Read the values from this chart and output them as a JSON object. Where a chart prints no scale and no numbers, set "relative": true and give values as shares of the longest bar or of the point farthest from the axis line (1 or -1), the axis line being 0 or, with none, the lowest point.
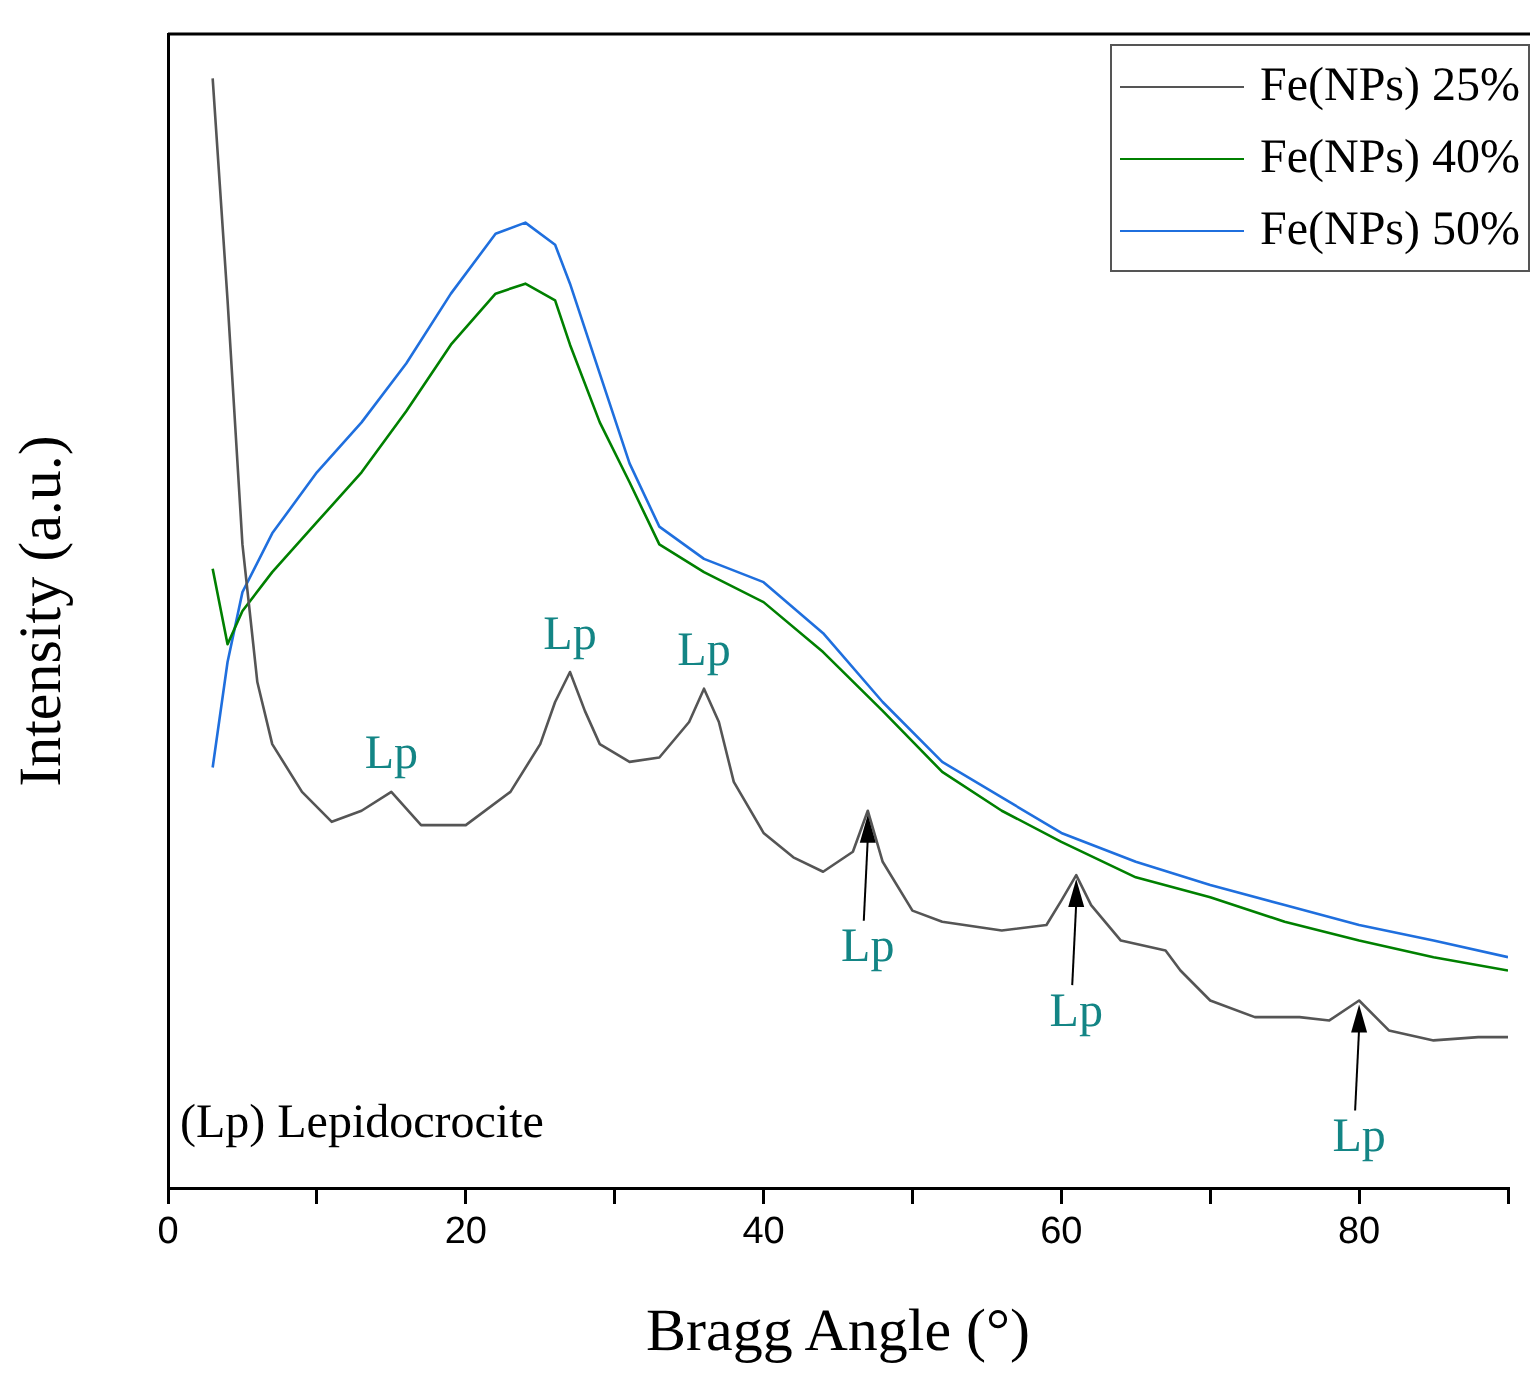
{
  "chart_data": {
    "type": "line",
    "xlabel": "Bragg Angle (°)",
    "ylabel": "Intensity (a.u.)",
    "relative": true,
    "xlim": [
      0,
      90
    ],
    "xticks": [
      0,
      {
        "value": 10,
        "label": null
      },
      20,
      {
        "value": 30,
        "label": null
      },
      40,
      {
        "value": 50,
        "label": null
      },
      60,
      {
        "value": 70,
        "label": null
      },
      80,
      {
        "value": 90,
        "label": null
      }
    ],
    "legend": "top right",
    "grid": false,
    "marker": "none",
    "line_style": "solid",
    "annotations": [
      {
        "text": "Lp",
        "x": 15,
        "y": 0.357
      },
      {
        "text": "Lp",
        "x": 27,
        "y": 0.465
      },
      {
        "text": "Lp",
        "x": 36,
        "y": 0.45
      },
      {
        "text": "Lp",
        "x": 47,
        "y": 0.34
      },
      {
        "text": "Lp",
        "x": 61,
        "y": 0.282
      },
      {
        "text": "Lp",
        "x": 80,
        "y": 0.169
      },
      "(Lp) Lepidocrocite"
    ],
    "series": [
      {
        "name": "Fe(NPs) 25%",
        "color": "#555555",
        "x": [
          3,
          4,
          5,
          6,
          7,
          9,
          11,
          13,
          15,
          17,
          20,
          23,
          25,
          26,
          27,
          28,
          29,
          31,
          33,
          35,
          36,
          37,
          38,
          40,
          42,
          44,
          46,
          47,
          48,
          50,
          52,
          56,
          59,
          60,
          61,
          62,
          64,
          67,
          68,
          70,
          73,
          76,
          78,
          80,
          82,
          85,
          88,
          90
        ],
        "values": [
          1.0,
          0.8,
          0.58,
          0.456,
          0.4,
          0.357,
          0.33,
          0.34,
          0.357,
          0.327,
          0.327,
          0.357,
          0.4,
          0.438,
          0.465,
          0.43,
          0.4,
          0.384,
          0.388,
          0.42,
          0.45,
          0.42,
          0.366,
          0.32,
          0.298,
          0.285,
          0.303,
          0.34,
          0.294,
          0.25,
          0.24,
          0.232,
          0.237,
          0.259,
          0.282,
          0.255,
          0.223,
          0.214,
          0.196,
          0.169,
          0.154,
          0.154,
          0.151,
          0.169,
          0.142,
          0.133,
          0.136,
          0.136
        ]
      },
      {
        "name": "Fe(NPs) 40%",
        "color": "#008000",
        "x": [
          3,
          4,
          5,
          7,
          10,
          13,
          16,
          19,
          22,
          24,
          26,
          27,
          29,
          31,
          33,
          36,
          40,
          44,
          48,
          52,
          56,
          60,
          65,
          70,
          75,
          80,
          85,
          90
        ],
        "values": [
          0.558,
          0.49,
          0.52,
          0.555,
          0.6,
          0.645,
          0.7,
          0.76,
          0.806,
          0.815,
          0.8,
          0.76,
          0.69,
          0.636,
          0.58,
          0.555,
          0.528,
          0.483,
          0.43,
          0.375,
          0.34,
          0.312,
          0.28,
          0.262,
          0.24,
          0.223,
          0.208,
          0.196
        ]
      },
      {
        "name": "Fe(NPs) 50%",
        "color": "#1f6fde",
        "x": [
          3,
          4,
          5,
          7,
          10,
          13,
          16,
          19,
          22,
          24,
          26,
          27,
          29,
          31,
          33,
          36,
          40,
          44,
          48,
          52,
          56,
          60,
          65,
          70,
          75,
          80,
          85,
          90
        ],
        "values": [
          0.379,
          0.474,
          0.537,
          0.59,
          0.645,
          0.69,
          0.743,
          0.806,
          0.86,
          0.87,
          0.85,
          0.815,
          0.734,
          0.653,
          0.596,
          0.567,
          0.546,
          0.5,
          0.438,
          0.384,
          0.352,
          0.32,
          0.294,
          0.273,
          0.255,
          0.237,
          0.223,
          0.208
        ]
      }
    ]
  }
}
